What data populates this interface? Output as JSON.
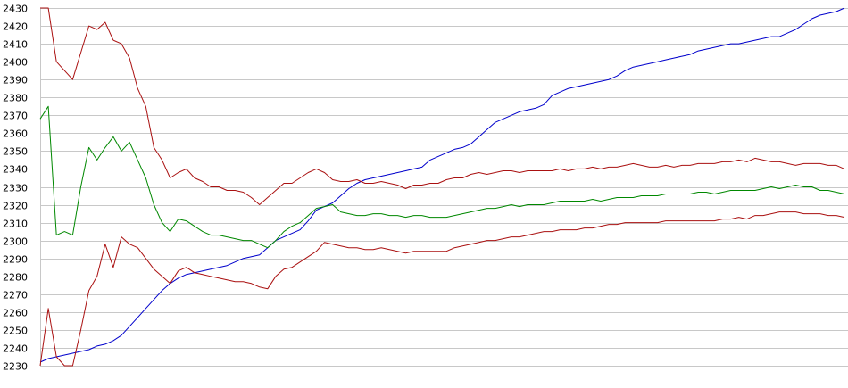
{
  "chart_data": {
    "type": "line",
    "title": "",
    "xlabel": "",
    "ylabel": "",
    "ylim": [
      2230,
      2430
    ],
    "y_ticks": [
      "2430",
      "2420",
      "2410",
      "2400",
      "2390",
      "2380",
      "2370",
      "2360",
      "2350",
      "2340",
      "2330",
      "2320",
      "2310",
      "2300",
      "2290",
      "2280",
      "2270",
      "2260",
      "2250",
      "2240",
      "2230"
    ],
    "grid": true,
    "x_count": 100,
    "series": [
      {
        "color": "#0000cc",
        "values": [
          2232,
          2234,
          2235,
          2236,
          2237,
          2238,
          2239,
          2241,
          2242,
          2244,
          2247,
          2252,
          2257,
          2262,
          2267,
          2272,
          2276,
          2279,
          2281,
          2282,
          2283,
          2284,
          2285,
          2286,
          2288,
          2290,
          2291,
          2292,
          2296,
          2300,
          2302,
          2304,
          2306,
          2311,
          2317,
          2319,
          2321,
          2325,
          2329,
          2332,
          2334,
          2335,
          2336,
          2337,
          2338,
          2339,
          2340,
          2341,
          2345,
          2347,
          2349,
          2351,
          2352,
          2354,
          2358,
          2362,
          2366,
          2368,
          2370,
          2372,
          2373,
          2374,
          2376,
          2381,
          2383,
          2385,
          2386,
          2387,
          2388,
          2389,
          2390,
          2392,
          2395,
          2397,
          2398,
          2399,
          2400,
          2401,
          2402,
          2403,
          2404,
          2406,
          2407,
          2408,
          2409,
          2410,
          2410,
          2411,
          2412,
          2413,
          2414,
          2414,
          2416,
          2418,
          2421,
          2424,
          2426,
          2427,
          2428,
          2430
        ]
      },
      {
        "color": "#aa1111",
        "values": [
          2430,
          2430,
          2400,
          2395,
          2390,
          2405,
          2420,
          2418,
          2422,
          2412,
          2410,
          2402,
          2385,
          2375,
          2352,
          2345,
          2335,
          2338,
          2340,
          2335,
          2333,
          2330,
          2330,
          2328,
          2328,
          2327,
          2324,
          2320,
          2324,
          2328,
          2332,
          2332,
          2335,
          2338,
          2340,
          2338,
          2334,
          2333,
          2333,
          2334,
          2332,
          2332,
          2333,
          2332,
          2331,
          2329,
          2331,
          2331,
          2332,
          2332,
          2334,
          2335,
          2335,
          2337,
          2338,
          2337,
          2338,
          2339,
          2339,
          2338,
          2339,
          2339,
          2339,
          2339,
          2340,
          2339,
          2340,
          2340,
          2341,
          2340,
          2341,
          2341,
          2342,
          2343,
          2342,
          2341,
          2341,
          2342,
          2341,
          2342,
          2342,
          2343,
          2343,
          2343,
          2344,
          2344,
          2345,
          2344,
          2346,
          2345,
          2344,
          2344,
          2343,
          2342,
          2343,
          2343,
          2343,
          2342,
          2342,
          2340
        ]
      },
      {
        "color": "#008800",
        "values": [
          2368,
          2375,
          2303,
          2305,
          2303,
          2330,
          2352,
          2345,
          2352,
          2358,
          2350,
          2355,
          2345,
          2335,
          2320,
          2310,
          2305,
          2312,
          2311,
          2308,
          2305,
          2303,
          2303,
          2302,
          2301,
          2300,
          2300,
          2298,
          2296,
          2300,
          2305,
          2308,
          2310,
          2314,
          2318,
          2319,
          2320,
          2316,
          2315,
          2314,
          2314,
          2315,
          2315,
          2314,
          2314,
          2313,
          2314,
          2314,
          2313,
          2313,
          2313,
          2314,
          2315,
          2316,
          2317,
          2318,
          2318,
          2319,
          2320,
          2319,
          2320,
          2320,
          2320,
          2321,
          2322,
          2322,
          2322,
          2322,
          2323,
          2322,
          2323,
          2324,
          2324,
          2324,
          2325,
          2325,
          2325,
          2326,
          2326,
          2326,
          2326,
          2327,
          2327,
          2326,
          2327,
          2328,
          2328,
          2328,
          2328,
          2329,
          2330,
          2329,
          2330,
          2331,
          2330,
          2330,
          2328,
          2328,
          2327,
          2326
        ]
      },
      {
        "color": "#aa1111",
        "values": [
          2230,
          2262,
          2235,
          2230,
          2230,
          2250,
          2272,
          2280,
          2298,
          2285,
          2302,
          2298,
          2296,
          2290,
          2284,
          2280,
          2276,
          2283,
          2285,
          2282,
          2281,
          2280,
          2279,
          2278,
          2277,
          2277,
          2276,
          2274,
          2273,
          2280,
          2284,
          2285,
          2288,
          2291,
          2294,
          2299,
          2298,
          2297,
          2296,
          2296,
          2295,
          2295,
          2296,
          2295,
          2294,
          2293,
          2294,
          2294,
          2294,
          2294,
          2294,
          2296,
          2297,
          2298,
          2299,
          2300,
          2300,
          2301,
          2302,
          2302,
          2303,
          2304,
          2305,
          2305,
          2306,
          2306,
          2306,
          2307,
          2307,
          2308,
          2309,
          2309,
          2310,
          2310,
          2310,
          2310,
          2310,
          2311,
          2311,
          2311,
          2311,
          2311,
          2311,
          2311,
          2312,
          2312,
          2313,
          2312,
          2314,
          2314,
          2315,
          2316,
          2316,
          2316,
          2315,
          2315,
          2315,
          2314,
          2314,
          2313
        ]
      }
    ]
  }
}
